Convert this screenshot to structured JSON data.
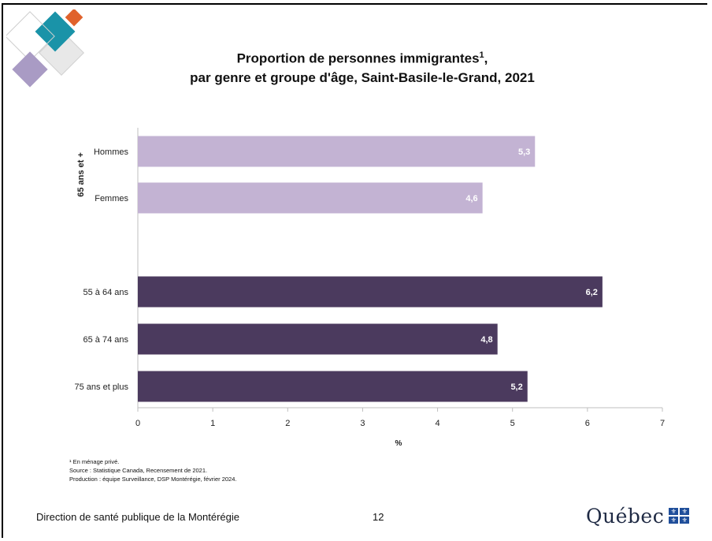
{
  "title_line1": "Proportion de personnes immigrantes",
  "title_sup": "1",
  "title_line2": "par genre et groupe d'âge, Saint-Basile-le-Grand, 2021",
  "chart_data": {
    "type": "bar",
    "orientation": "horizontal",
    "group_label": "65 ans et +",
    "categories": [
      "Hommes",
      "Femmes",
      "55 à 64 ans",
      "65 à 74 ans",
      "75 ans et plus"
    ],
    "values": [
      5.3,
      4.6,
      6.2,
      4.8,
      5.2
    ],
    "value_labels": [
      "5,3",
      "4,6",
      "6,2",
      "4,8",
      "5,2"
    ],
    "group": [
      "65 ans et +",
      "65 ans et +",
      "age",
      "age",
      "age"
    ],
    "colors": {
      "genre": "#c3b3d3",
      "age": "#4b3a5e"
    },
    "xlim": [
      0,
      7
    ],
    "xticks": [
      "0",
      "1",
      "2",
      "3",
      "4",
      "5",
      "6",
      "7"
    ],
    "xlabel": "%",
    "grid": false,
    "legend": "none"
  },
  "notes": {
    "note1": "¹ En ménage privé.",
    "source": "Source : Statistique Canada, Recensement de 2021.",
    "production": "Production : équipe Surveillance, DSP Montérégie, février 2024."
  },
  "footer": {
    "organization": "Direction de santé publique de la Montérégie",
    "page_number": "12",
    "brand": "Québec"
  }
}
